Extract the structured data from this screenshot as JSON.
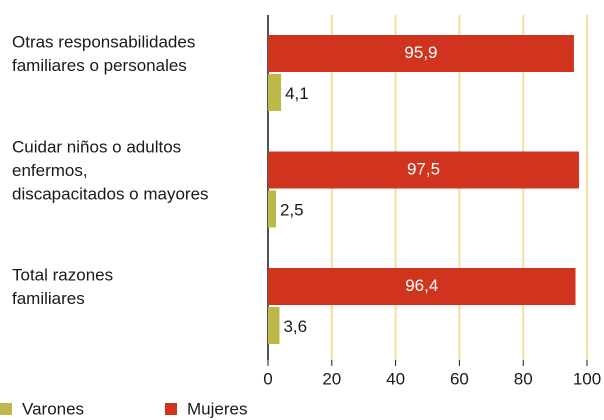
{
  "chart_data": {
    "type": "barh",
    "categories": [
      [
        "Otras responsabilidades",
        "familiares o personales"
      ],
      [
        "Cuidar niños o adultos",
        "enfermos,",
        "discapacitados o mayores"
      ],
      [
        "Total razones",
        "familiares"
      ]
    ],
    "series": [
      {
        "name": "Varones",
        "color": "#bdb84a",
        "values": [
          4.1,
          2.5,
          3.6
        ],
        "value_labels": [
          "4,1",
          "2,5",
          "3,6"
        ]
      },
      {
        "name": "Mujeres",
        "color": "#d0341f",
        "values": [
          95.9,
          97.5,
          96.4
        ],
        "value_labels": [
          "95,9",
          "97,5",
          "96,4"
        ]
      }
    ],
    "xlim": [
      0,
      100
    ],
    "xticks": [
      0,
      20,
      40,
      60,
      80,
      100
    ],
    "grid": true
  }
}
